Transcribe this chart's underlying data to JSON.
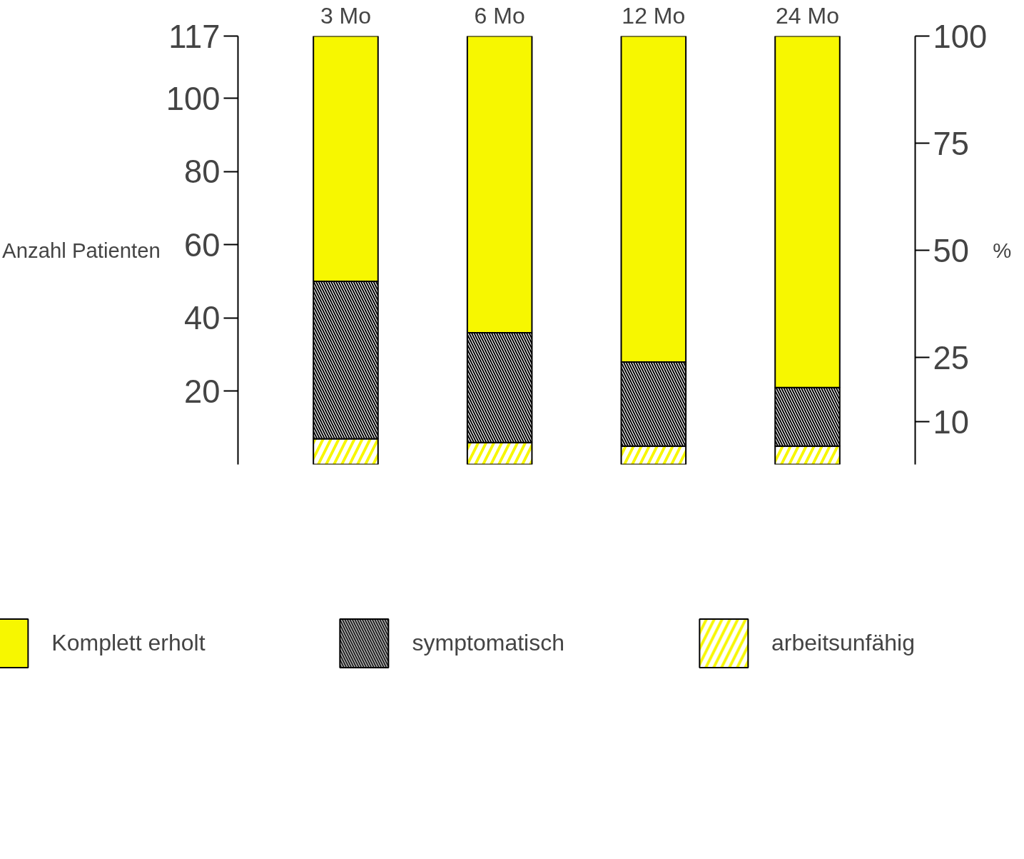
{
  "chart_data": {
    "type": "bar",
    "stacked": true,
    "categories": [
      "3 Mo",
      "6 Mo",
      "12 Mo",
      "24 Mo"
    ],
    "ylabel": "Anzahl Patienten",
    "y2label": "%",
    "ylim": [
      0,
      117
    ],
    "yticks": [
      20,
      40,
      60,
      80,
      100,
      117
    ],
    "y2lim": [
      0,
      100
    ],
    "y2ticks": [
      10,
      25,
      50,
      75,
      100
    ],
    "series": [
      {
        "name": "arbeitsunfähig",
        "color": "#f7f700",
        "values": [
          7,
          6,
          5,
          5
        ]
      },
      {
        "name": "symptomatisch",
        "color": "#000000",
        "values": [
          43,
          30,
          23,
          16
        ]
      },
      {
        "name": "Komplett erholt",
        "color": "#f7f700",
        "values": [
          67,
          81,
          89,
          96
        ]
      }
    ],
    "legend": "bottom",
    "grid": false
  }
}
